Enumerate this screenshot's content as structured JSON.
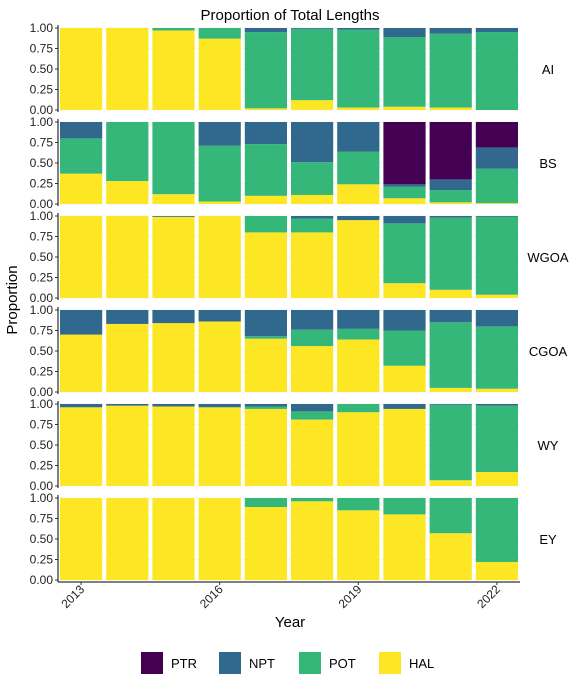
{
  "chart_data": {
    "type": "bar",
    "stacked": true,
    "title": "Proportion of Total Lengths",
    "xlabel": "Year",
    "ylabel": "Proportion",
    "years": [
      2013,
      2014,
      2015,
      2016,
      2017,
      2018,
      2019,
      2020,
      2021,
      2022
    ],
    "x_ticks": [
      "2013",
      "2016",
      "2019",
      "2022"
    ],
    "y_ticks": [
      "0.00",
      "0.25",
      "0.50",
      "0.75",
      "1.00"
    ],
    "ylim": [
      0,
      1
    ],
    "legend": {
      "position": "bottom",
      "entries": [
        "PTR",
        "NPT",
        "POT",
        "HAL"
      ]
    },
    "colors": {
      "PTR": "#440154",
      "NPT": "#31688e",
      "POT": "#35b779",
      "HAL": "#fde725"
    },
    "stack_order_bottom_to_top": [
      "HAL",
      "POT",
      "NPT",
      "PTR"
    ],
    "facets": [
      {
        "label": "AI",
        "data": [
          {
            "year": 2013,
            "HAL": 1.0,
            "POT": 0.0,
            "NPT": 0.0,
            "PTR": 0
          },
          {
            "year": 2014,
            "HAL": 1.0,
            "POT": 0.0,
            "NPT": 0.0,
            "PTR": 0
          },
          {
            "year": 2015,
            "HAL": 0.97,
            "POT": 0.03,
            "NPT": 0.0,
            "PTR": 0
          },
          {
            "year": 2016,
            "HAL": 0.87,
            "POT": 0.13,
            "NPT": 0.0,
            "PTR": 0
          },
          {
            "year": 2017,
            "HAL": 0.02,
            "POT": 0.93,
            "NPT": 0.05,
            "PTR": 0
          },
          {
            "year": 2018,
            "HAL": 0.12,
            "POT": 0.87,
            "NPT": 0.01,
            "PTR": 0
          },
          {
            "year": 2019,
            "HAL": 0.03,
            "POT": 0.95,
            "NPT": 0.02,
            "PTR": 0
          },
          {
            "year": 2020,
            "HAL": 0.04,
            "POT": 0.85,
            "NPT": 0.11,
            "PTR": 0
          },
          {
            "year": 2021,
            "HAL": 0.03,
            "POT": 0.9,
            "NPT": 0.07,
            "PTR": 0
          },
          {
            "year": 2022,
            "HAL": 0.0,
            "POT": 0.95,
            "NPT": 0.05,
            "PTR": 0
          }
        ]
      },
      {
        "label": "BS",
        "data": [
          {
            "year": 2013,
            "HAL": 0.37,
            "POT": 0.43,
            "NPT": 0.2,
            "PTR": 0
          },
          {
            "year": 2014,
            "HAL": 0.28,
            "POT": 0.72,
            "NPT": 0.0,
            "PTR": 0
          },
          {
            "year": 2015,
            "HAL": 0.12,
            "POT": 0.88,
            "NPT": 0.0,
            "PTR": 0
          },
          {
            "year": 2016,
            "HAL": 0.03,
            "POT": 0.68,
            "NPT": 0.29,
            "PTR": 0
          },
          {
            "year": 2017,
            "HAL": 0.1,
            "POT": 0.63,
            "NPT": 0.27,
            "PTR": 0
          },
          {
            "year": 2018,
            "HAL": 0.11,
            "POT": 0.4,
            "NPT": 0.49,
            "PTR": 0
          },
          {
            "year": 2019,
            "HAL": 0.24,
            "POT": 0.4,
            "NPT": 0.36,
            "PTR": 0
          },
          {
            "year": 2020,
            "HAL": 0.07,
            "POT": 0.14,
            "NPT": 0.03,
            "PTR": 0.76
          },
          {
            "year": 2021,
            "HAL": 0.02,
            "POT": 0.15,
            "NPT": 0.13,
            "PTR": 0.7
          },
          {
            "year": 2022,
            "HAL": 0.01,
            "POT": 0.42,
            "NPT": 0.26,
            "PTR": 0.31
          }
        ]
      },
      {
        "label": "WGOA",
        "data": [
          {
            "year": 2013,
            "HAL": 1.0,
            "POT": 0.0,
            "NPT": 0.0,
            "PTR": 0
          },
          {
            "year": 2014,
            "HAL": 1.0,
            "POT": 0.0,
            "NPT": 0.0,
            "PTR": 0
          },
          {
            "year": 2015,
            "HAL": 0.99,
            "POT": 0.0,
            "NPT": 0.01,
            "PTR": 0
          },
          {
            "year": 2016,
            "HAL": 1.0,
            "POT": 0.0,
            "NPT": 0.0,
            "PTR": 0
          },
          {
            "year": 2017,
            "HAL": 0.8,
            "POT": 0.2,
            "NPT": 0.0,
            "PTR": 0
          },
          {
            "year": 2018,
            "HAL": 0.8,
            "POT": 0.17,
            "NPT": 0.03,
            "PTR": 0
          },
          {
            "year": 2019,
            "HAL": 0.95,
            "POT": 0.0,
            "NPT": 0.05,
            "PTR": 0
          },
          {
            "year": 2020,
            "HAL": 0.18,
            "POT": 0.73,
            "NPT": 0.09,
            "PTR": 0
          },
          {
            "year": 2021,
            "HAL": 0.1,
            "POT": 0.88,
            "NPT": 0.02,
            "PTR": 0
          },
          {
            "year": 2022,
            "HAL": 0.04,
            "POT": 0.95,
            "NPT": 0.01,
            "PTR": 0
          }
        ]
      },
      {
        "label": "CGOA",
        "data": [
          {
            "year": 2013,
            "HAL": 0.7,
            "POT": 0.0,
            "NPT": 0.3,
            "PTR": 0
          },
          {
            "year": 2014,
            "HAL": 0.83,
            "POT": 0.0,
            "NPT": 0.17,
            "PTR": 0
          },
          {
            "year": 2015,
            "HAL": 0.84,
            "POT": 0.0,
            "NPT": 0.16,
            "PTR": 0
          },
          {
            "year": 2016,
            "HAL": 0.86,
            "POT": 0.0,
            "NPT": 0.14,
            "PTR": 0
          },
          {
            "year": 2017,
            "HAL": 0.65,
            "POT": 0.03,
            "NPT": 0.32,
            "PTR": 0
          },
          {
            "year": 2018,
            "HAL": 0.56,
            "POT": 0.2,
            "NPT": 0.24,
            "PTR": 0
          },
          {
            "year": 2019,
            "HAL": 0.64,
            "POT": 0.13,
            "NPT": 0.23,
            "PTR": 0
          },
          {
            "year": 2020,
            "HAL": 0.32,
            "POT": 0.43,
            "NPT": 0.25,
            "PTR": 0
          },
          {
            "year": 2021,
            "HAL": 0.05,
            "POT": 0.8,
            "NPT": 0.15,
            "PTR": 0
          },
          {
            "year": 2022,
            "HAL": 0.04,
            "POT": 0.76,
            "NPT": 0.2,
            "PTR": 0
          }
        ]
      },
      {
        "label": "WY",
        "data": [
          {
            "year": 2013,
            "HAL": 0.96,
            "POT": 0.0,
            "NPT": 0.04,
            "PTR": 0
          },
          {
            "year": 2014,
            "HAL": 0.98,
            "POT": 0.0,
            "NPT": 0.02,
            "PTR": 0
          },
          {
            "year": 2015,
            "HAL": 0.97,
            "POT": 0.0,
            "NPT": 0.03,
            "PTR": 0
          },
          {
            "year": 2016,
            "HAL": 0.96,
            "POT": 0.0,
            "NPT": 0.04,
            "PTR": 0
          },
          {
            "year": 2017,
            "HAL": 0.94,
            "POT": 0.03,
            "NPT": 0.03,
            "PTR": 0
          },
          {
            "year": 2018,
            "HAL": 0.81,
            "POT": 0.1,
            "NPT": 0.09,
            "PTR": 0
          },
          {
            "year": 2019,
            "HAL": 0.9,
            "POT": 0.1,
            "NPT": 0.0,
            "PTR": 0
          },
          {
            "year": 2020,
            "HAL": 0.94,
            "POT": 0.0,
            "NPT": 0.06,
            "PTR": 0
          },
          {
            "year": 2021,
            "HAL": 0.07,
            "POT": 0.92,
            "NPT": 0.01,
            "PTR": 0
          },
          {
            "year": 2022,
            "HAL": 0.17,
            "POT": 0.81,
            "NPT": 0.02,
            "PTR": 0
          }
        ]
      },
      {
        "label": "EY",
        "data": [
          {
            "year": 2013,
            "HAL": 1.0,
            "POT": 0.0,
            "NPT": 0.0,
            "PTR": 0
          },
          {
            "year": 2014,
            "HAL": 1.0,
            "POT": 0.0,
            "NPT": 0.0,
            "PTR": 0
          },
          {
            "year": 2015,
            "HAL": 1.0,
            "POT": 0.0,
            "NPT": 0.0,
            "PTR": 0
          },
          {
            "year": 2016,
            "HAL": 1.0,
            "POT": 0.0,
            "NPT": 0.0,
            "PTR": 0
          },
          {
            "year": 2017,
            "HAL": 0.89,
            "POT": 0.11,
            "NPT": 0.0,
            "PTR": 0
          },
          {
            "year": 2018,
            "HAL": 0.96,
            "POT": 0.04,
            "NPT": 0.0,
            "PTR": 0
          },
          {
            "year": 2019,
            "HAL": 0.85,
            "POT": 0.15,
            "NPT": 0.0,
            "PTR": 0
          },
          {
            "year": 2020,
            "HAL": 0.8,
            "POT": 0.2,
            "NPT": 0.0,
            "PTR": 0
          },
          {
            "year": 2021,
            "HAL": 0.57,
            "POT": 0.43,
            "NPT": 0.0,
            "PTR": 0
          },
          {
            "year": 2022,
            "HAL": 0.22,
            "POT": 0.78,
            "NPT": 0.0,
            "PTR": 0
          }
        ]
      }
    ]
  }
}
